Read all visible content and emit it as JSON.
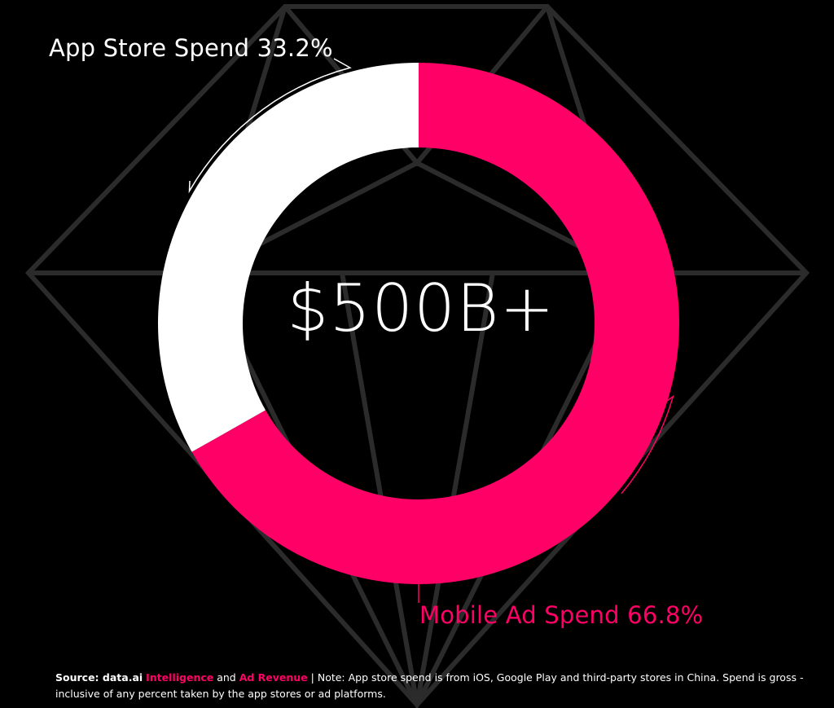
{
  "colors": {
    "background": "#000000",
    "app_store": "#ffffff",
    "mobile_ad": "#ff0066",
    "diamond_outline": "#2b2b2b"
  },
  "chart_data": {
    "type": "pie",
    "variant": "donut",
    "center_label": "$500B+",
    "slices": [
      {
        "name": "App Store Spend",
        "value": 33.2,
        "label": "App Store Spend 33.2%",
        "color": "#ffffff"
      },
      {
        "name": "Mobile Ad Spend",
        "value": 66.8,
        "label": "Mobile Ad Spend 66.8%",
        "color": "#ff0066"
      }
    ]
  },
  "footnote": {
    "source_prefix": "Source: ",
    "source_brand": "data.ai",
    "source_link1": "Intelligence",
    "source_and": " and ",
    "source_link2": "Ad Revenue",
    "note": " | Note: App store spend is from iOS, Google Play and third-party stores in China. Spend is gross - inclusive of any percent taken by the app stores or ad platforms."
  }
}
